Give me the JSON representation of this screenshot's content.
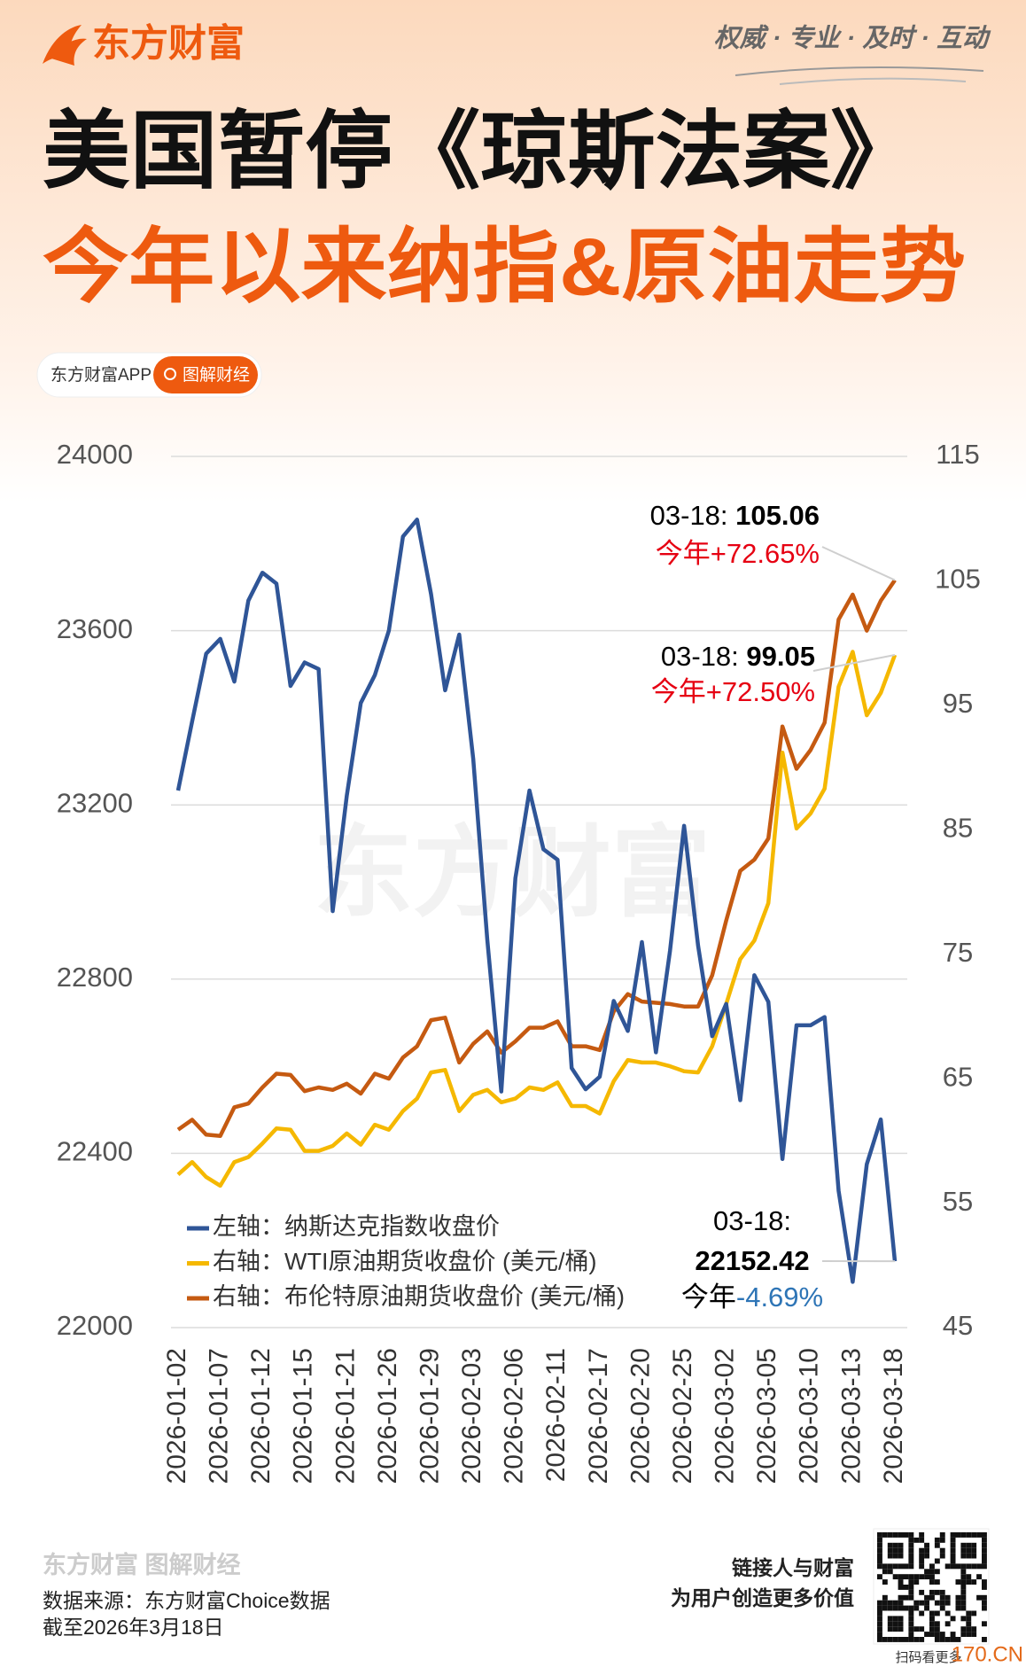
{
  "header": {
    "logo": "东方财富",
    "slogan": "权威 · 专业 · 及时 · 互动",
    "title": "美国暂停《琼斯法案》",
    "subtitle": "今年以来纳指&原油走势",
    "badge_app": "东方财富APP",
    "badge_tag": "图解财经"
  },
  "watermark": "东方财富",
  "chart_data": {
    "type": "line",
    "categories": [
      "2026-01-02",
      null,
      null,
      "2026-01-07",
      null,
      null,
      "2026-01-12",
      null,
      null,
      "2026-01-15",
      null,
      null,
      "2026-01-21",
      null,
      null,
      "2026-01-26",
      null,
      null,
      "2026-01-29",
      null,
      null,
      "2026-02-03",
      null,
      null,
      "2026-02-06",
      null,
      null,
      "2026-02-11",
      null,
      null,
      "2026-02-17",
      null,
      null,
      "2026-02-20",
      null,
      null,
      "2026-02-25",
      null,
      null,
      "2026-03-02",
      null,
      null,
      "2026-03-05",
      null,
      null,
      "2026-03-10",
      null,
      null,
      "2026-03-13",
      null,
      null,
      "2026-03-18"
    ],
    "series": [
      {
        "name": "左轴：纳斯达克指数收盘价",
        "color": "#2f5597",
        "values": [
          23233,
          23392,
          23547,
          23581,
          23483,
          23669,
          23733,
          23708,
          23473,
          23527,
          23512,
          22956,
          23221,
          23434,
          23498,
          23600,
          23816,
          23855,
          23684,
          23463,
          23591,
          23306,
          22890,
          22542,
          23032,
          23233,
          23098,
          23074,
          22596,
          22547,
          22576,
          22750,
          22681,
          22885,
          22632,
          22865,
          23152,
          22877,
          22669,
          22743,
          22522,
          22809,
          22748,
          22387,
          22694,
          22694,
          22713,
          22314,
          22105,
          22375,
          22478,
          22152.42
        ],
        "annotation": {
          "date": "03-18:",
          "prefix": "今年",
          "change": "-4.69%",
          "prefix_color": "#000000",
          "change_color": "#2e75b6"
        }
      },
      {
        "name": "右轴：WTI原油期货收盘价 (美元/桶)",
        "color": "#f5b800",
        "axis": "y2",
        "values": [
          57.3,
          58.3,
          57.1,
          56.4,
          58.3,
          58.7,
          59.8,
          61.0,
          60.9,
          59.2,
          59.2,
          59.6,
          60.6,
          59.7,
          61.3,
          60.9,
          62.4,
          63.4,
          65.5,
          65.7,
          62.4,
          63.7,
          64.1,
          63.1,
          63.4,
          64.3,
          64.1,
          64.7,
          62.8,
          62.8,
          62.2,
          64.8,
          66.5,
          66.3,
          66.3,
          66.0,
          65.6,
          65.5,
          67.6,
          71.0,
          74.6,
          76.1,
          79.1,
          91.2,
          85.1,
          86.3,
          88.3,
          96.5,
          99.3,
          94.2,
          96.0,
          99.05
        ],
        "annotation": {
          "date": "03-18:",
          "prefix": "今年",
          "change": "+72.50%",
          "prefix_color": "#e60012",
          "change_color": "#e60012"
        }
      },
      {
        "name": "右轴：布伦特原油期货收盘价 (美元/桶)",
        "color": "#c55a11",
        "axis": "y2",
        "values": [
          60.9,
          61.7,
          60.5,
          60.4,
          62.7,
          63.0,
          64.3,
          65.4,
          65.3,
          64.0,
          64.3,
          64.1,
          64.6,
          63.8,
          65.4,
          65.0,
          66.7,
          67.6,
          69.7,
          69.9,
          66.3,
          67.8,
          68.8,
          67.1,
          68.0,
          69.1,
          69.1,
          69.6,
          67.6,
          67.6,
          67.3,
          70.4,
          71.8,
          71.2,
          71.1,
          71.0,
          70.8,
          70.8,
          73.3,
          77.7,
          81.7,
          82.6,
          84.3,
          93.3,
          89.9,
          91.4,
          93.6,
          101.9,
          103.9,
          101.0,
          103.4,
          105.06
        ],
        "annotation": {
          "date": "03-18:",
          "prefix": "今年",
          "change": "+72.65%",
          "prefix_color": "#e60012",
          "change_color": "#e60012"
        }
      }
    ],
    "ylim": [
      22000,
      24000
    ],
    "yticks": [
      22000,
      22400,
      22800,
      23200,
      23600,
      24000
    ],
    "y2lim": [
      45,
      115
    ],
    "y2ticks": [
      45,
      55,
      65,
      75,
      85,
      95,
      105,
      115
    ],
    "grid": true,
    "legend": "lower left"
  },
  "footer": {
    "logo": "东方财富 图解财经",
    "source": "数据来源：东方财富Choice数据",
    "date": "截至2026年3月18日",
    "slogan1": "链接人与财富",
    "slogan2": "为用户创造更多价值",
    "qr_caption": "扫码看更多",
    "site": "170.CN"
  }
}
